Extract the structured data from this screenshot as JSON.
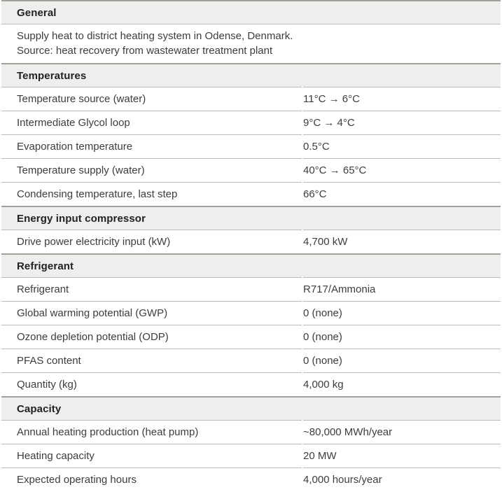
{
  "colors": {
    "section_header_bg": "#eeeeec",
    "section_top_border": "#a3a09b",
    "row_divider": "#bdbab6",
    "text": "#3d3d3d",
    "heading_text": "#222222",
    "page_bg": "#ffffff"
  },
  "table": {
    "sections": [
      {
        "title": "General",
        "description": [
          "Supply heat to district heating system in Odense, Denmark.",
          "Source: heat recovery from wastewater treatment plant"
        ],
        "rows": []
      },
      {
        "title": "Temperatures",
        "rows": [
          {
            "label": "Temperature source (water)",
            "value": "11°C → 6°C"
          },
          {
            "label": "Intermediate Glycol loop",
            "value": "9°C → 4°C"
          },
          {
            "label": "Evaporation temperature",
            "value": "0.5°C"
          },
          {
            "label": "Temperature supply (water)",
            "value": "40°C → 65°C"
          },
          {
            "label": "Condensing temperature, last step",
            "value": "66°C"
          }
        ]
      },
      {
        "title": "Energy input compressor",
        "rows": [
          {
            "label": "Drive power electricity input (kW)",
            "value": "4,700 kW"
          }
        ]
      },
      {
        "title": "Refrigerant",
        "rows": [
          {
            "label": "Refrigerant",
            "value": "R717/Ammonia"
          },
          {
            "label": "Global warming potential (GWP)",
            "value": "0 (none)"
          },
          {
            "label": "Ozone depletion potential (ODP)",
            "value": "0 (none)"
          },
          {
            "label": "PFAS content",
            "value": "0 (none)"
          },
          {
            "label": "Quantity (kg)",
            "value": "4,000 kg"
          }
        ]
      },
      {
        "title": "Capacity",
        "rows": [
          {
            "label": "Annual heating production (heat pump)",
            "value": "~80,000 MWh/year"
          },
          {
            "label": "Heating capacity",
            "value": "20 MW"
          },
          {
            "label": "Expected operating hours",
            "value": "4,000 hours/year"
          }
        ]
      }
    ]
  }
}
